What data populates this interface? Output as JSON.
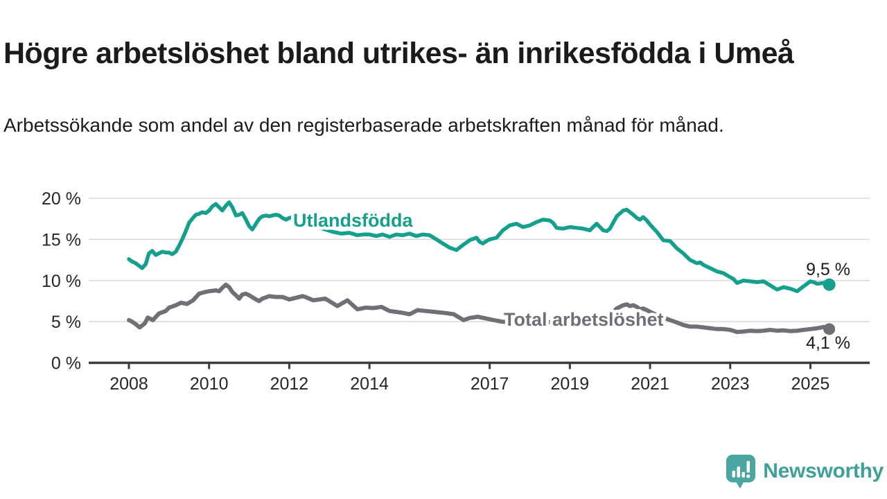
{
  "header": {
    "title": "Högre arbetslöshet bland utrikes- än inrikesfödda i Umeå",
    "subtitle": "Arbetssökande som andel av den registerbaserade arbetskraften månad för månad."
  },
  "branding": {
    "logo_text": "Newsworthy",
    "logo_color": "#4ba5a0"
  },
  "colors": {
    "background": "#ffffff",
    "title_text": "#1b1b1b",
    "axis": "#3c3c3c",
    "grid": "#d8d8d8",
    "teal_series": "#14a08c",
    "gray_series": "#716f76",
    "end_label_text": "#1c1c1c"
  },
  "chart_data": {
    "type": "line",
    "title": "Högre arbetslöshet bland utrikes- än inrikesfödda i Umeå",
    "subtitle": "Arbetssökande som andel av den registerbaserade arbetskraften månad för månad.",
    "unit": "%",
    "grid": true,
    "legend_position": "inline-labels",
    "x_range_years": [
      2007.0,
      2026.5
    ],
    "ylim": [
      0,
      20.5
    ],
    "x_axis": {
      "ticks": [
        {
          "t": 2008,
          "label": "2008"
        },
        {
          "t": 2010,
          "label": "2010"
        },
        {
          "t": 2012,
          "label": "2012"
        },
        {
          "t": 2014,
          "label": "2014"
        },
        {
          "t": 2017,
          "label": "2017"
        },
        {
          "t": 2019,
          "label": "2019"
        },
        {
          "t": 2021,
          "label": "2021"
        },
        {
          "t": 2023,
          "label": "2023"
        },
        {
          "t": 2025,
          "label": "2025"
        }
      ]
    },
    "y_axis": {
      "ticks": [
        {
          "v": 0,
          "label": "0 %"
        },
        {
          "v": 5,
          "label": "5 %"
        },
        {
          "v": 10,
          "label": "10 %"
        },
        {
          "v": 15,
          "label": "15 %"
        },
        {
          "v": 20,
          "label": "20 %"
        }
      ]
    },
    "series": [
      {
        "id": "utlandsfodda",
        "name": "Utlandsfödda",
        "color": "#14a08c",
        "end_label": "9,5 %",
        "end_value": 9.5,
        "points": [
          [
            2008.0,
            12.6
          ],
          [
            2008.08,
            12.3
          ],
          [
            2008.17,
            12.1
          ],
          [
            2008.25,
            11.8
          ],
          [
            2008.33,
            11.5
          ],
          [
            2008.42,
            12.0
          ],
          [
            2008.5,
            13.3
          ],
          [
            2008.58,
            13.6
          ],
          [
            2008.67,
            13.1
          ],
          [
            2008.75,
            13.3
          ],
          [
            2008.83,
            13.5
          ],
          [
            2008.92,
            13.4
          ],
          [
            2009.0,
            13.4
          ],
          [
            2009.08,
            13.2
          ],
          [
            2009.17,
            13.5
          ],
          [
            2009.25,
            14.2
          ],
          [
            2009.33,
            15.0
          ],
          [
            2009.42,
            16.0
          ],
          [
            2009.5,
            17.0
          ],
          [
            2009.58,
            17.5
          ],
          [
            2009.67,
            18.0
          ],
          [
            2009.75,
            18.1
          ],
          [
            2009.83,
            18.3
          ],
          [
            2009.92,
            18.2
          ],
          [
            2010.0,
            18.5
          ],
          [
            2010.08,
            19.0
          ],
          [
            2010.17,
            19.3
          ],
          [
            2010.25,
            18.9
          ],
          [
            2010.33,
            18.5
          ],
          [
            2010.42,
            19.1
          ],
          [
            2010.5,
            19.5
          ],
          [
            2010.58,
            18.9
          ],
          [
            2010.67,
            17.9
          ],
          [
            2010.75,
            18.0
          ],
          [
            2010.83,
            18.2
          ],
          [
            2010.92,
            17.4
          ],
          [
            2011.0,
            16.6
          ],
          [
            2011.08,
            16.2
          ],
          [
            2011.17,
            16.9
          ],
          [
            2011.25,
            17.5
          ],
          [
            2011.33,
            17.8
          ],
          [
            2011.42,
            17.9
          ],
          [
            2011.5,
            17.8
          ],
          [
            2011.58,
            17.9
          ],
          [
            2011.67,
            18.0
          ],
          [
            2011.75,
            17.9
          ],
          [
            2011.83,
            17.6
          ],
          [
            2011.92,
            17.4
          ],
          [
            2012.0,
            17.6
          ],
          [
            2012.08,
            17.7
          ],
          [
            2012.17,
            17.5
          ],
          [
            2012.3,
            17.3
          ],
          [
            2012.5,
            16.9
          ],
          [
            2012.7,
            16.5
          ],
          [
            2012.9,
            16.2
          ],
          [
            2013.1,
            15.9
          ],
          [
            2013.3,
            15.7
          ],
          [
            2013.5,
            15.8
          ],
          [
            2013.7,
            15.5
          ],
          [
            2013.85,
            15.6
          ],
          [
            2014.0,
            15.6
          ],
          [
            2014.17,
            15.4
          ],
          [
            2014.33,
            15.6
          ],
          [
            2014.5,
            15.3
          ],
          [
            2014.67,
            15.6
          ],
          [
            2014.83,
            15.5
          ],
          [
            2015.0,
            15.7
          ],
          [
            2015.17,
            15.4
          ],
          [
            2015.33,
            15.6
          ],
          [
            2015.5,
            15.5
          ],
          [
            2015.67,
            15.0
          ],
          [
            2015.83,
            14.5
          ],
          [
            2016.0,
            14.0
          ],
          [
            2016.17,
            13.7
          ],
          [
            2016.33,
            14.3
          ],
          [
            2016.5,
            14.9
          ],
          [
            2016.67,
            15.2
          ],
          [
            2016.75,
            14.7
          ],
          [
            2016.83,
            14.5
          ],
          [
            2016.92,
            14.8
          ],
          [
            2017.0,
            15.0
          ],
          [
            2017.17,
            15.2
          ],
          [
            2017.33,
            16.1
          ],
          [
            2017.5,
            16.7
          ],
          [
            2017.67,
            16.9
          ],
          [
            2017.83,
            16.5
          ],
          [
            2018.0,
            16.7
          ],
          [
            2018.17,
            17.1
          ],
          [
            2018.33,
            17.4
          ],
          [
            2018.5,
            17.3
          ],
          [
            2018.58,
            17.0
          ],
          [
            2018.67,
            16.4
          ],
          [
            2018.83,
            16.3
          ],
          [
            2019.0,
            16.5
          ],
          [
            2019.17,
            16.4
          ],
          [
            2019.33,
            16.3
          ],
          [
            2019.5,
            16.1
          ],
          [
            2019.58,
            16.5
          ],
          [
            2019.67,
            16.9
          ],
          [
            2019.83,
            16.1
          ],
          [
            2019.92,
            16.0
          ],
          [
            2020.0,
            16.3
          ],
          [
            2020.17,
            17.8
          ],
          [
            2020.33,
            18.5
          ],
          [
            2020.42,
            18.6
          ],
          [
            2020.5,
            18.3
          ],
          [
            2020.58,
            18.0
          ],
          [
            2020.67,
            17.6
          ],
          [
            2020.75,
            17.4
          ],
          [
            2020.83,
            17.7
          ],
          [
            2020.92,
            17.3
          ],
          [
            2021.0,
            16.8
          ],
          [
            2021.17,
            15.9
          ],
          [
            2021.33,
            14.9
          ],
          [
            2021.5,
            14.8
          ],
          [
            2021.67,
            13.9
          ],
          [
            2021.83,
            13.3
          ],
          [
            2022.0,
            12.5
          ],
          [
            2022.17,
            12.1
          ],
          [
            2022.25,
            12.2
          ],
          [
            2022.33,
            11.9
          ],
          [
            2022.5,
            11.5
          ],
          [
            2022.67,
            11.1
          ],
          [
            2022.83,
            10.9
          ],
          [
            2023.0,
            10.4
          ],
          [
            2023.08,
            10.2
          ],
          [
            2023.17,
            9.7
          ],
          [
            2023.33,
            10.0
          ],
          [
            2023.5,
            9.9
          ],
          [
            2023.67,
            9.8
          ],
          [
            2023.83,
            9.9
          ],
          [
            2024.0,
            9.4
          ],
          [
            2024.17,
            8.9
          ],
          [
            2024.33,
            9.2
          ],
          [
            2024.5,
            9.0
          ],
          [
            2024.67,
            8.7
          ],
          [
            2024.83,
            9.3
          ],
          [
            2025.0,
            9.9
          ],
          [
            2025.08,
            9.8
          ],
          [
            2025.17,
            9.6
          ],
          [
            2025.33,
            9.7
          ],
          [
            2025.47,
            9.5
          ]
        ]
      },
      {
        "id": "total-arbetsloshet",
        "name": "Total arbetslöshet",
        "color": "#716f76",
        "end_label": "4,1 %",
        "end_value": 4.1,
        "points": [
          [
            2008.0,
            5.2
          ],
          [
            2008.08,
            5.0
          ],
          [
            2008.17,
            4.7
          ],
          [
            2008.27,
            4.3
          ],
          [
            2008.4,
            4.8
          ],
          [
            2008.47,
            5.5
          ],
          [
            2008.6,
            5.2
          ],
          [
            2008.75,
            6.0
          ],
          [
            2008.92,
            6.3
          ],
          [
            2009.0,
            6.7
          ],
          [
            2009.17,
            7.0
          ],
          [
            2009.3,
            7.3
          ],
          [
            2009.45,
            7.15
          ],
          [
            2009.6,
            7.6
          ],
          [
            2009.75,
            8.4
          ],
          [
            2009.9,
            8.6
          ],
          [
            2010.0,
            8.7
          ],
          [
            2010.17,
            8.8
          ],
          [
            2010.25,
            8.7
          ],
          [
            2010.33,
            9.1
          ],
          [
            2010.42,
            9.5
          ],
          [
            2010.5,
            9.2
          ],
          [
            2010.58,
            8.6
          ],
          [
            2010.67,
            8.2
          ],
          [
            2010.75,
            7.8
          ],
          [
            2010.83,
            8.3
          ],
          [
            2010.92,
            8.4
          ],
          [
            2011.0,
            8.2
          ],
          [
            2011.17,
            7.7
          ],
          [
            2011.25,
            7.5
          ],
          [
            2011.33,
            7.8
          ],
          [
            2011.5,
            8.1
          ],
          [
            2011.67,
            8.0
          ],
          [
            2011.83,
            8.0
          ],
          [
            2012.0,
            7.7
          ],
          [
            2012.17,
            7.9
          ],
          [
            2012.33,
            8.1
          ],
          [
            2012.4,
            8.0
          ],
          [
            2012.6,
            7.6
          ],
          [
            2012.9,
            7.8
          ],
          [
            2013.2,
            6.9
          ],
          [
            2013.45,
            7.6
          ],
          [
            2013.7,
            6.5
          ],
          [
            2013.9,
            6.7
          ],
          [
            2014.1,
            6.65
          ],
          [
            2014.3,
            6.8
          ],
          [
            2014.5,
            6.3
          ],
          [
            2014.8,
            6.1
          ],
          [
            2015.0,
            5.9
          ],
          [
            2015.2,
            6.4
          ],
          [
            2015.4,
            6.3
          ],
          [
            2015.6,
            6.2
          ],
          [
            2015.9,
            6.05
          ],
          [
            2016.1,
            5.9
          ],
          [
            2016.35,
            5.2
          ],
          [
            2016.5,
            5.45
          ],
          [
            2016.7,
            5.6
          ],
          [
            2016.9,
            5.4
          ],
          [
            2017.1,
            5.2
          ],
          [
            2017.3,
            5.0
          ],
          [
            2017.6,
            4.9
          ],
          [
            2018.0,
            4.8
          ],
          [
            2018.4,
            4.9
          ],
          [
            2018.8,
            5.0
          ],
          [
            2019.2,
            5.1
          ],
          [
            2019.6,
            5.3
          ],
          [
            2019.9,
            5.5
          ],
          [
            2020.0,
            5.8
          ],
          [
            2020.17,
            6.6
          ],
          [
            2020.33,
            7.0
          ],
          [
            2020.42,
            7.1
          ],
          [
            2020.5,
            6.9
          ],
          [
            2020.58,
            7.0
          ],
          [
            2020.67,
            6.8
          ],
          [
            2020.75,
            6.5
          ],
          [
            2020.83,
            6.6
          ],
          [
            2020.92,
            6.4
          ],
          [
            2021.0,
            6.2
          ],
          [
            2021.17,
            5.8
          ],
          [
            2021.33,
            5.5
          ],
          [
            2021.5,
            5.2
          ],
          [
            2021.67,
            4.9
          ],
          [
            2021.83,
            4.6
          ],
          [
            2022.0,
            4.4
          ],
          [
            2022.17,
            4.4
          ],
          [
            2022.33,
            4.3
          ],
          [
            2022.5,
            4.2
          ],
          [
            2022.67,
            4.1
          ],
          [
            2022.83,
            4.1
          ],
          [
            2023.0,
            4.0
          ],
          [
            2023.17,
            3.75
          ],
          [
            2023.33,
            3.8
          ],
          [
            2023.5,
            3.9
          ],
          [
            2023.67,
            3.85
          ],
          [
            2023.83,
            3.9
          ],
          [
            2024.0,
            4.0
          ],
          [
            2024.17,
            3.9
          ],
          [
            2024.33,
            3.95
          ],
          [
            2024.5,
            3.85
          ],
          [
            2024.67,
            3.9
          ],
          [
            2024.83,
            4.0
          ],
          [
            2025.0,
            4.1
          ],
          [
            2025.17,
            4.2
          ],
          [
            2025.33,
            4.35
          ],
          [
            2025.47,
            4.1
          ]
        ]
      }
    ]
  }
}
